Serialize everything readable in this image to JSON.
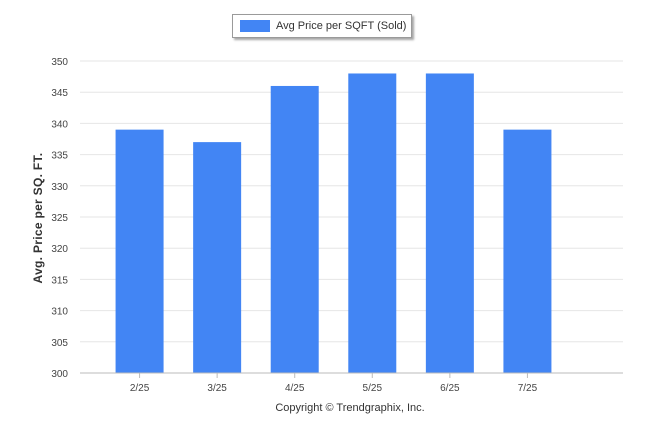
{
  "legend": {
    "label": "Avg Price per SQFT (Sold)"
  },
  "footer": {
    "copyright": "Copyright © Trendgraphix, Inc."
  },
  "colors": {
    "bar": "#4285f4",
    "grid": "#e6e6e6",
    "axis": "#bbbbbb",
    "tick_text": "#444444"
  },
  "chart_data": {
    "type": "bar",
    "categories": [
      "2/25",
      "3/25",
      "4/25",
      "5/25",
      "6/25",
      "7/25"
    ],
    "series": [
      {
        "name": "Avg Price per SQFT (Sold)",
        "values": [
          339,
          337,
          346,
          348,
          348,
          339
        ]
      }
    ],
    "ylabel": "Avg. Price per SQ. FT.",
    "xlabel": "",
    "ylim": [
      300,
      350
    ],
    "yticks": [
      300,
      305,
      310,
      315,
      320,
      325,
      330,
      335,
      340,
      345,
      350
    ],
    "grid": true,
    "legend_position": "top-center"
  }
}
